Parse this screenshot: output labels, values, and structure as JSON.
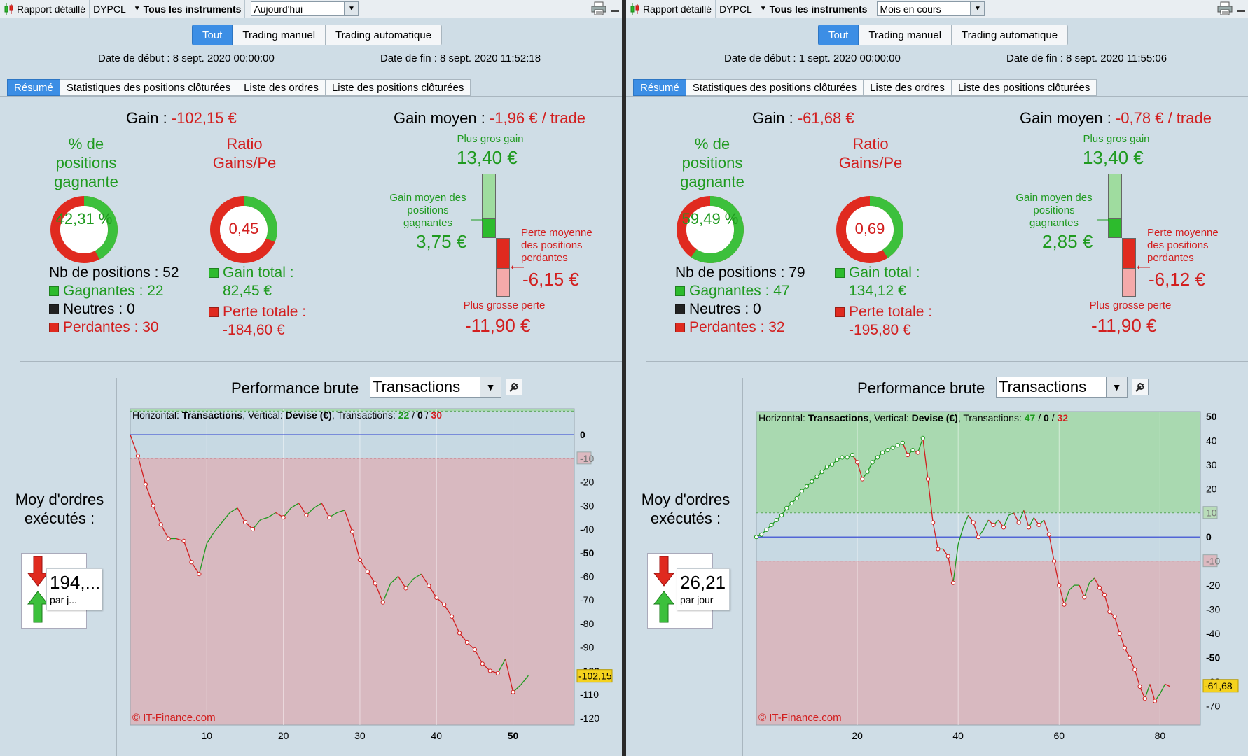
{
  "panels": [
    {
      "titlebar": {
        "report_label": "Rapport détaillé",
        "account_label": "DYPCL",
        "instruments_label": "Tous les instruments",
        "period_value": "Aujourd'hui"
      },
      "filters": [
        "Tout",
        "Trading manuel",
        "Trading automatique"
      ],
      "date_start": "Date de début : 8 sept. 2020 00:00:00",
      "date_end": "Date de fin : 8 sept. 2020 11:52:18",
      "tabs": [
        "Résumé",
        "Statistiques des positions clôturées",
        "Liste des ordres",
        "Liste des positions clôturées"
      ],
      "summary": {
        "gain_label": "Gain :",
        "gain_value": "-102,15 €",
        "pct_title": "% de positions gagnante",
        "pct_value": "42,31 %",
        "pct_fraction": 0.4231,
        "ratio_title": "Ratio Gains/Pe",
        "ratio_value": "0,45",
        "ratio_fraction": 0.31,
        "nb_positions": "Nb de positions : 52",
        "gagnantes": "Gagnantes : 22",
        "neutres": "Neutres : 0",
        "perdantes": "Perdantes : 30",
        "gain_total_label": "Gain total :",
        "gain_total_value": "82,45 €",
        "perte_totale_label": "Perte totale :",
        "perte_totale_value": "-184,60 €",
        "avg_label": "Gain moyen :",
        "avg_value": "-1,96 € / trade",
        "max_gain_label": "Plus gros gain",
        "max_gain_value": "13,40 €",
        "avg_win_label": "Gain moyen des positions gagnantes",
        "avg_win_value": "3,75 €",
        "avg_loss_label": "Perte moyenne des positions perdantes",
        "avg_loss_value": "-6,15 €",
        "max_loss_label": "Plus grosse perte",
        "max_loss_value": "-11,90 €"
      },
      "perf": {
        "title": "Performance brute",
        "select_value": "Transactions",
        "moy_label": "Moy d'ordres exécutés :",
        "moy_value": "194,...",
        "moy_unit": "par j...",
        "legend_h": "Horizontal:",
        "legend_h_val": "Transactions",
        "legend_v": "Vertical:",
        "legend_v_val": "Devise (€)",
        "legend_t": "Transactions:",
        "legend_win": "22",
        "legend_neu": "0",
        "legend_loss": "30",
        "copyright": "© IT-Finance.com",
        "current_label": "-102,15"
      },
      "chart_data": {
        "type": "line",
        "xlabel": "",
        "ylabel": "",
        "xlim": [
          0,
          58
        ],
        "ylim": [
          -123,
          11
        ],
        "x_ticks": [
          "10",
          "20",
          "30",
          "40",
          "50"
        ],
        "x_tick_values": [
          10,
          20,
          30,
          40,
          50
        ],
        "bold_x_tick": 50,
        "y_ticks": [
          "0",
          "-10",
          "-20",
          "-30",
          "-40",
          "-50",
          "-60",
          "-70",
          "-80",
          "-90",
          "-100",
          "-110",
          "-120"
        ],
        "y_tick_values": [
          0,
          -10,
          -20,
          -30,
          -40,
          -50,
          -60,
          -70,
          -80,
          -90,
          -100,
          -110,
          -120
        ],
        "band_top": 10,
        "band_bottom": -10,
        "current_value": -102.15,
        "points": [
          0,
          -9,
          -21,
          -30,
          -38,
          -44,
          -44,
          -45,
          -54,
          -59,
          -46,
          -41,
          -37,
          -33,
          -31,
          -37,
          -40,
          -36,
          -35,
          -33,
          -35,
          -31,
          -29,
          -34,
          -31,
          -29,
          -35,
          -33,
          -32,
          -41,
          -53,
          -58,
          -63,
          -71,
          -63,
          -60,
          -65,
          -61,
          -59,
          -64,
          -69,
          -72,
          -77,
          -84,
          -88,
          -91,
          -97,
          -100,
          -101,
          -95,
          -109,
          -106,
          -102
        ]
      }
    },
    {
      "titlebar": {
        "report_label": "Rapport détaillé",
        "account_label": "DYPCL",
        "instruments_label": "Tous les instruments",
        "period_value": "Mois en cours"
      },
      "filters": [
        "Tout",
        "Trading manuel",
        "Trading automatique"
      ],
      "date_start": "Date de début : 1 sept. 2020 00:00:00",
      "date_end": "Date de fin : 8 sept. 2020 11:55:06",
      "tabs": [
        "Résumé",
        "Statistiques des positions clôturées",
        "Liste des ordres",
        "Liste des positions clôturées"
      ],
      "summary": {
        "gain_label": "Gain :",
        "gain_value": "-61,68 €",
        "pct_title": "% de positions gagnante",
        "pct_value": "59,49 %",
        "pct_fraction": 0.5949,
        "ratio_title": "Ratio Gains/Pe",
        "ratio_value": "0,69",
        "ratio_fraction": 0.41,
        "nb_positions": "Nb de positions : 79",
        "gagnantes": "Gagnantes : 47",
        "neutres": "Neutres : 0",
        "perdantes": "Perdantes : 32",
        "gain_total_label": "Gain total :",
        "gain_total_value": "134,12 €",
        "perte_totale_label": "Perte totale :",
        "perte_totale_value": "-195,80 €",
        "avg_label": "Gain moyen :",
        "avg_value": "-0,78 € / trade",
        "max_gain_label": "Plus gros gain",
        "max_gain_value": "13,40 €",
        "avg_win_label": "Gain moyen des positions gagnantes",
        "avg_win_value": "2,85 €",
        "avg_loss_label": "Perte moyenne des positions perdantes",
        "avg_loss_value": "-6,12 €",
        "max_loss_label": "Plus grosse perte",
        "max_loss_value": "-11,90 €"
      },
      "perf": {
        "title": "Performance brute",
        "select_value": "Transactions",
        "moy_label": "Moy d'ordres exécutés :",
        "moy_value": "26,21",
        "moy_unit": "par jour",
        "legend_h": "Horizontal:",
        "legend_h_val": "Transactions",
        "legend_v": "Vertical:",
        "legend_v_val": "Devise (€)",
        "legend_t": "Transactions:",
        "legend_win": "47",
        "legend_neu": "0",
        "legend_loss": "32",
        "copyright": "© IT-Finance.com",
        "current_label": "-61,68"
      },
      "chart_data": {
        "type": "line",
        "xlabel": "",
        "ylabel": "",
        "xlim": [
          0,
          88
        ],
        "ylim": [
          -78,
          52
        ],
        "x_ticks": [
          "20",
          "40",
          "60",
          "80"
        ],
        "x_tick_values": [
          20,
          40,
          60,
          80
        ],
        "bold_x_tick": null,
        "y_ticks": [
          "50",
          "40",
          "30",
          "20",
          "10",
          "0",
          "-10",
          "-20",
          "-30",
          "-40",
          "-50",
          "-60",
          "-70"
        ],
        "y_tick_values": [
          50,
          40,
          30,
          20,
          10,
          0,
          -10,
          -20,
          -30,
          -40,
          -50,
          -60,
          -70
        ],
        "band_top": 10,
        "band_bottom": -10,
        "current_value": -61.68,
        "points": [
          0,
          1,
          3,
          5,
          7,
          9,
          12,
          14,
          16,
          19,
          21,
          23,
          25,
          27,
          29,
          30,
          32,
          33,
          33,
          34,
          31,
          24,
          27,
          31,
          33,
          35,
          36,
          37,
          38,
          39,
          34,
          36,
          35,
          41,
          24,
          6,
          -5,
          -5,
          -8,
          -19,
          -3,
          4,
          9,
          6,
          0,
          3,
          7,
          5,
          7,
          4,
          9,
          10,
          6,
          11,
          4,
          8,
          5,
          7,
          1,
          -10,
          -20,
          -28,
          -22,
          -20,
          -20,
          -25,
          -19,
          -17,
          -21,
          -24,
          -31,
          -33,
          -40,
          -46,
          -50,
          -55,
          -62,
          -67,
          -61,
          -68,
          -65,
          -61,
          -62
        ]
      }
    }
  ]
}
